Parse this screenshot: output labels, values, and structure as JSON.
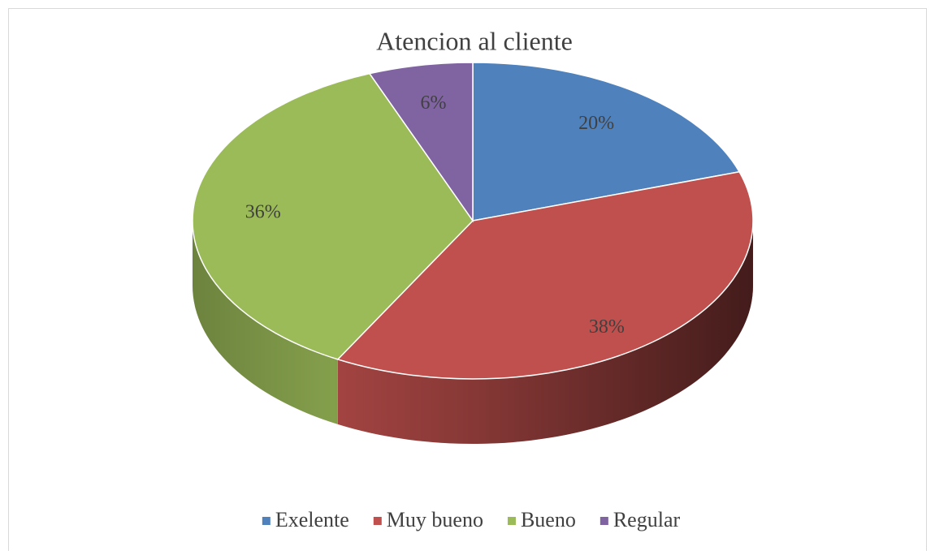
{
  "chart_data": {
    "type": "pie",
    "title": "Atencion al cliente",
    "categories": [
      "Exelente",
      "Muy bueno",
      "Bueno",
      "Regular"
    ],
    "values": [
      20,
      38,
      36,
      6
    ],
    "value_labels": [
      "20%",
      "38%",
      "36%",
      "6%"
    ],
    "colors": [
      "#4f81bd",
      "#c0504d",
      "#9bbb59",
      "#8064a2"
    ],
    "legend": "bottom"
  }
}
